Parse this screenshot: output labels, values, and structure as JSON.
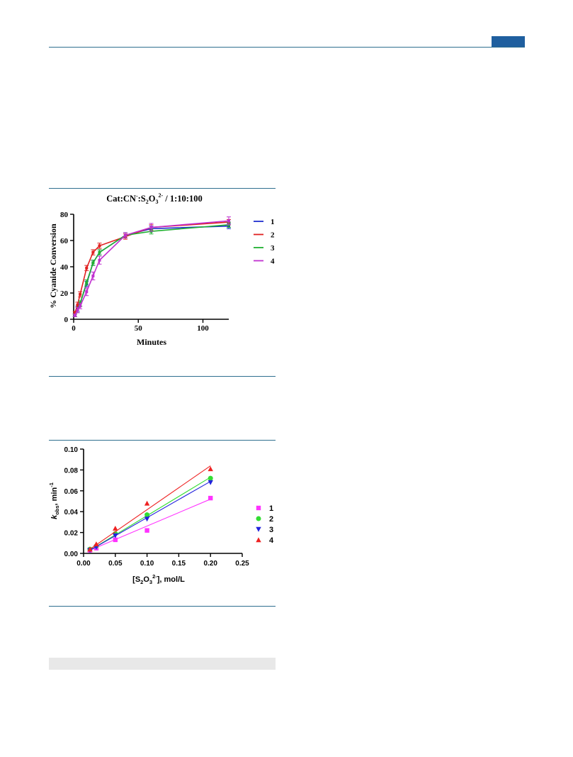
{
  "header": {
    "accent_color": "#1f5f9f",
    "rule_color": "#2f6f8f"
  },
  "chart_data": [
    {
      "type": "line",
      "title_parts": [
        "Cat:CN",
        "-",
        ":S",
        "2",
        "O",
        "3",
        "2-",
        " / 1:10:100"
      ],
      "xlabel": "Minutes",
      "ylabel": "% Cyanide Conversion",
      "xlim": [
        0,
        120
      ],
      "ylim": [
        0,
        80
      ],
      "xticks": [
        0,
        50,
        100
      ],
      "yticks": [
        0,
        20,
        40,
        60,
        80
      ],
      "legend_position": "right",
      "grid": false,
      "series": [
        {
          "name": "1",
          "color": "#1f2fd0",
          "x": [
            1,
            3,
            5,
            10,
            15,
            20,
            40,
            60,
            120
          ],
          "y": [
            3,
            8,
            12,
            27,
            43,
            51,
            64,
            69,
            71
          ],
          "err": [
            1,
            2,
            2,
            2,
            2,
            2,
            2,
            2,
            2
          ]
        },
        {
          "name": "2",
          "color": "#e02020",
          "x": [
            1,
            3,
            5,
            10,
            15,
            20,
            40,
            60,
            120
          ],
          "y": [
            5,
            11,
            19,
            39,
            51,
            56,
            63,
            70,
            74
          ],
          "err": [
            1,
            2,
            2,
            2,
            2,
            2,
            2,
            2,
            2
          ]
        },
        {
          "name": "3",
          "color": "#20b030",
          "x": [
            1,
            3,
            5,
            10,
            15,
            20,
            40,
            60,
            120
          ],
          "y": [
            3,
            7,
            12,
            28,
            43,
            51,
            64,
            67,
            72
          ],
          "err": [
            1,
            2,
            2,
            2,
            2,
            2,
            2,
            2,
            2
          ]
        },
        {
          "name": "4",
          "color": "#c030d0",
          "x": [
            1,
            3,
            5,
            10,
            15,
            20,
            40,
            60,
            120
          ],
          "y": [
            3,
            7,
            10,
            21,
            33,
            45,
            64,
            70,
            75
          ],
          "err": [
            1,
            2,
            2,
            3,
            3,
            3,
            2,
            3,
            3
          ]
        }
      ]
    },
    {
      "type": "scatter",
      "xlabel_parts": [
        "[S",
        "2",
        "O",
        "3",
        "2-",
        "], mol/L"
      ],
      "ylabel_parts": [
        "k",
        "obs",
        ", min",
        "-1"
      ],
      "xlim": [
        0,
        0.25
      ],
      "ylim": [
        0,
        0.1
      ],
      "xticks": [
        "0.00",
        "0.05",
        "0.10",
        "0.15",
        "0.20",
        "0.25"
      ],
      "yticks": [
        "0.00",
        "0.02",
        "0.04",
        "0.06",
        "0.08",
        "0.10"
      ],
      "legend_position": "right",
      "grid": false,
      "series": [
        {
          "name": "1",
          "color": "#ff33ff",
          "marker": "square",
          "x": [
            0.01,
            0.02,
            0.05,
            0.1,
            0.2
          ],
          "y": [
            0.003,
            0.005,
            0.013,
            0.022,
            0.053
          ],
          "fit": [
            [
              0.01,
              0.003
            ],
            [
              0.2,
              0.052
            ]
          ]
        },
        {
          "name": "2",
          "color": "#33dd33",
          "marker": "circle",
          "x": [
            0.01,
            0.02,
            0.05,
            0.1,
            0.2
          ],
          "y": [
            0.004,
            0.007,
            0.019,
            0.037,
            0.072
          ],
          "fit": [
            [
              0.01,
              0.003
            ],
            [
              0.2,
              0.073
            ]
          ]
        },
        {
          "name": "3",
          "color": "#2222dd",
          "marker": "triangle-down",
          "x": [
            0.01,
            0.02,
            0.05,
            0.1,
            0.2
          ],
          "y": [
            0.003,
            0.006,
            0.017,
            0.033,
            0.068
          ],
          "fit": [
            [
              0.01,
              0.003
            ],
            [
              0.2,
              0.069
            ]
          ]
        },
        {
          "name": "4",
          "color": "#ee2222",
          "marker": "triangle-up",
          "x": [
            0.01,
            0.02,
            0.05,
            0.1,
            0.2
          ],
          "y": [
            0.004,
            0.009,
            0.024,
            0.048,
            0.081
          ],
          "fit": [
            [
              0.01,
              0.004
            ],
            [
              0.2,
              0.084
            ]
          ]
        }
      ]
    }
  ]
}
